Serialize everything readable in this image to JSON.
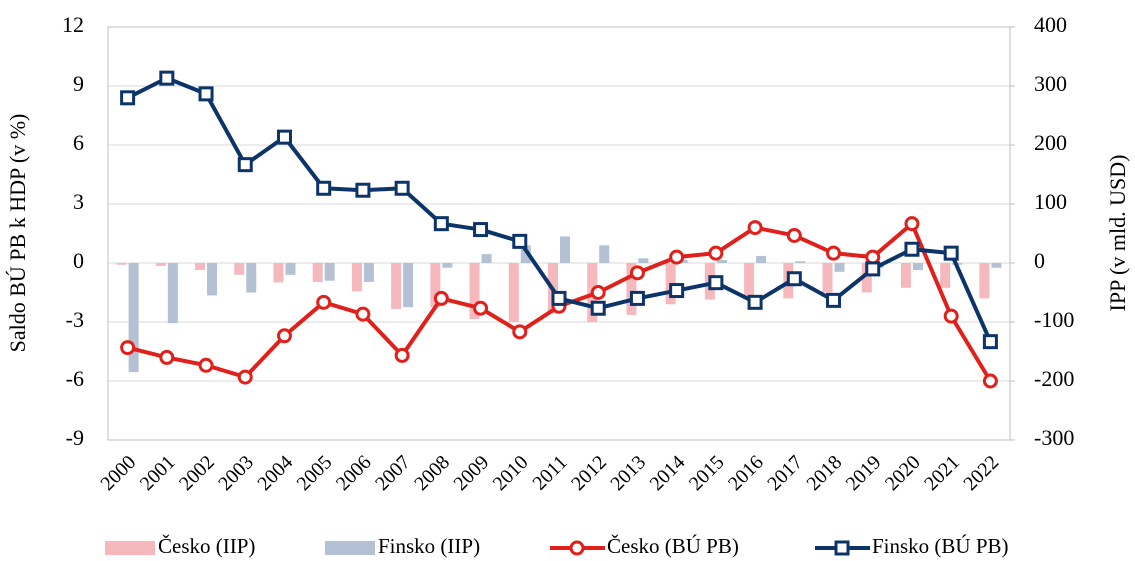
{
  "chart_data": {
    "type": "combo",
    "y_label": "Saldo BÚ PB k HDP (v %)",
    "y2_label": "IPP (v mld. USD)",
    "categories": [
      "2000",
      "2001",
      "2002",
      "2003",
      "2004",
      "2005",
      "2006",
      "2007",
      "2008",
      "2009",
      "2010",
      "2011",
      "2012",
      "2013",
      "2014",
      "2015",
      "2016",
      "2017",
      "2018",
      "2019",
      "2020",
      "2021",
      "2022"
    ],
    "ylim": [
      -9,
      12
    ],
    "yticks": [
      -9,
      -6,
      -3,
      0,
      3,
      6,
      9,
      12
    ],
    "y2lim": [
      -300,
      400
    ],
    "y2ticks": [
      -300,
      -200,
      -100,
      0,
      100,
      200,
      300,
      400
    ],
    "grid": true,
    "legend": "bottom",
    "series": [
      {
        "name": "Česko (IIP)",
        "type": "bar",
        "axis": "y2",
        "color": "#f4b8bd",
        "values": [
          -3,
          -5,
          -12,
          -20,
          -33,
          -32,
          -48,
          -78,
          -75,
          -95,
          -100,
          -85,
          -100,
          -88,
          -70,
          -62,
          -55,
          -60,
          -50,
          -50,
          -42,
          -42,
          -60
        ]
      },
      {
        "name": "Finsko (IIP)",
        "type": "bar",
        "axis": "y2",
        "color": "#b4c0d3",
        "values": [
          -185,
          -102,
          -55,
          -50,
          -20,
          -30,
          -32,
          -75,
          -8,
          15,
          30,
          45,
          30,
          8,
          5,
          5,
          12,
          3,
          -15,
          -8,
          -12,
          -3,
          -8
        ]
      },
      {
        "name": "Česko (BÚ PB)",
        "type": "line",
        "marker": "circle",
        "color": "#e0201b",
        "values": [
          -4.3,
          -4.8,
          -5.2,
          -5.8,
          -3.7,
          -2.0,
          -2.6,
          -4.7,
          -1.8,
          -2.3,
          -3.5,
          -2.2,
          -1.5,
          -0.5,
          0.3,
          0.5,
          1.8,
          1.4,
          0.5,
          0.3,
          2.0,
          -2.7,
          -6.0
        ]
      },
      {
        "name": "Finsko (BÚ PB)",
        "type": "line",
        "marker": "square",
        "color": "#0c3468",
        "values": [
          8.4,
          9.4,
          8.6,
          5.0,
          6.4,
          3.8,
          3.7,
          3.8,
          2.0,
          1.7,
          1.1,
          -1.8,
          -2.3,
          -1.8,
          -1.4,
          -1.0,
          -2.0,
          -0.8,
          -1.9,
          -0.3,
          0.7,
          0.5,
          -4.0
        ]
      }
    ]
  }
}
